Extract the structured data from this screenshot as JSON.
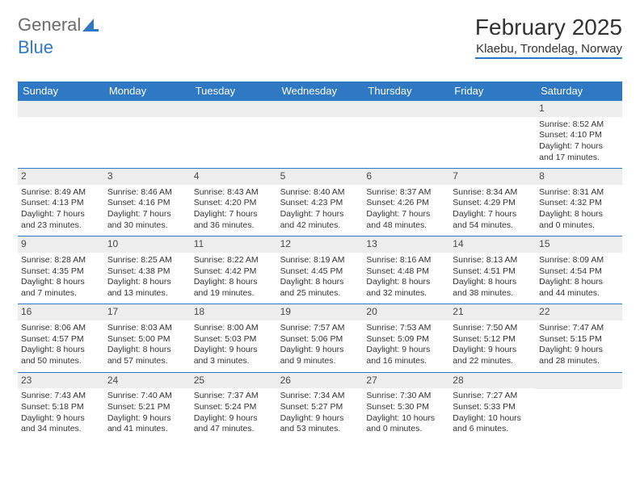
{
  "logo": {
    "text1": "General",
    "text2": "Blue"
  },
  "title": "February 2025",
  "subtitle": "Klaebu, Trondelag, Norway",
  "colors": {
    "brand": "#2f78c4",
    "daynum_bg": "#ededed",
    "text": "#333333",
    "logo_gray": "#6b6b6b"
  },
  "weekdays": [
    "Sunday",
    "Monday",
    "Tuesday",
    "Wednesday",
    "Thursday",
    "Friday",
    "Saturday"
  ],
  "weeks": [
    [
      null,
      null,
      null,
      null,
      null,
      null,
      {
        "n": "1",
        "sr": "Sunrise: 8:52 AM",
        "ss": "Sunset: 4:10 PM",
        "dl1": "Daylight: 7 hours",
        "dl2": "and 17 minutes."
      }
    ],
    [
      {
        "n": "2",
        "sr": "Sunrise: 8:49 AM",
        "ss": "Sunset: 4:13 PM",
        "dl1": "Daylight: 7 hours",
        "dl2": "and 23 minutes."
      },
      {
        "n": "3",
        "sr": "Sunrise: 8:46 AM",
        "ss": "Sunset: 4:16 PM",
        "dl1": "Daylight: 7 hours",
        "dl2": "and 30 minutes."
      },
      {
        "n": "4",
        "sr": "Sunrise: 8:43 AM",
        "ss": "Sunset: 4:20 PM",
        "dl1": "Daylight: 7 hours",
        "dl2": "and 36 minutes."
      },
      {
        "n": "5",
        "sr": "Sunrise: 8:40 AM",
        "ss": "Sunset: 4:23 PM",
        "dl1": "Daylight: 7 hours",
        "dl2": "and 42 minutes."
      },
      {
        "n": "6",
        "sr": "Sunrise: 8:37 AM",
        "ss": "Sunset: 4:26 PM",
        "dl1": "Daylight: 7 hours",
        "dl2": "and 48 minutes."
      },
      {
        "n": "7",
        "sr": "Sunrise: 8:34 AM",
        "ss": "Sunset: 4:29 PM",
        "dl1": "Daylight: 7 hours",
        "dl2": "and 54 minutes."
      },
      {
        "n": "8",
        "sr": "Sunrise: 8:31 AM",
        "ss": "Sunset: 4:32 PM",
        "dl1": "Daylight: 8 hours",
        "dl2": "and 0 minutes."
      }
    ],
    [
      {
        "n": "9",
        "sr": "Sunrise: 8:28 AM",
        "ss": "Sunset: 4:35 PM",
        "dl1": "Daylight: 8 hours",
        "dl2": "and 7 minutes."
      },
      {
        "n": "10",
        "sr": "Sunrise: 8:25 AM",
        "ss": "Sunset: 4:38 PM",
        "dl1": "Daylight: 8 hours",
        "dl2": "and 13 minutes."
      },
      {
        "n": "11",
        "sr": "Sunrise: 8:22 AM",
        "ss": "Sunset: 4:42 PM",
        "dl1": "Daylight: 8 hours",
        "dl2": "and 19 minutes."
      },
      {
        "n": "12",
        "sr": "Sunrise: 8:19 AM",
        "ss": "Sunset: 4:45 PM",
        "dl1": "Daylight: 8 hours",
        "dl2": "and 25 minutes."
      },
      {
        "n": "13",
        "sr": "Sunrise: 8:16 AM",
        "ss": "Sunset: 4:48 PM",
        "dl1": "Daylight: 8 hours",
        "dl2": "and 32 minutes."
      },
      {
        "n": "14",
        "sr": "Sunrise: 8:13 AM",
        "ss": "Sunset: 4:51 PM",
        "dl1": "Daylight: 8 hours",
        "dl2": "and 38 minutes."
      },
      {
        "n": "15",
        "sr": "Sunrise: 8:09 AM",
        "ss": "Sunset: 4:54 PM",
        "dl1": "Daylight: 8 hours",
        "dl2": "and 44 minutes."
      }
    ],
    [
      {
        "n": "16",
        "sr": "Sunrise: 8:06 AM",
        "ss": "Sunset: 4:57 PM",
        "dl1": "Daylight: 8 hours",
        "dl2": "and 50 minutes."
      },
      {
        "n": "17",
        "sr": "Sunrise: 8:03 AM",
        "ss": "Sunset: 5:00 PM",
        "dl1": "Daylight: 8 hours",
        "dl2": "and 57 minutes."
      },
      {
        "n": "18",
        "sr": "Sunrise: 8:00 AM",
        "ss": "Sunset: 5:03 PM",
        "dl1": "Daylight: 9 hours",
        "dl2": "and 3 minutes."
      },
      {
        "n": "19",
        "sr": "Sunrise: 7:57 AM",
        "ss": "Sunset: 5:06 PM",
        "dl1": "Daylight: 9 hours",
        "dl2": "and 9 minutes."
      },
      {
        "n": "20",
        "sr": "Sunrise: 7:53 AM",
        "ss": "Sunset: 5:09 PM",
        "dl1": "Daylight: 9 hours",
        "dl2": "and 16 minutes."
      },
      {
        "n": "21",
        "sr": "Sunrise: 7:50 AM",
        "ss": "Sunset: 5:12 PM",
        "dl1": "Daylight: 9 hours",
        "dl2": "and 22 minutes."
      },
      {
        "n": "22",
        "sr": "Sunrise: 7:47 AM",
        "ss": "Sunset: 5:15 PM",
        "dl1": "Daylight: 9 hours",
        "dl2": "and 28 minutes."
      }
    ],
    [
      {
        "n": "23",
        "sr": "Sunrise: 7:43 AM",
        "ss": "Sunset: 5:18 PM",
        "dl1": "Daylight: 9 hours",
        "dl2": "and 34 minutes."
      },
      {
        "n": "24",
        "sr": "Sunrise: 7:40 AM",
        "ss": "Sunset: 5:21 PM",
        "dl1": "Daylight: 9 hours",
        "dl2": "and 41 minutes."
      },
      {
        "n": "25",
        "sr": "Sunrise: 7:37 AM",
        "ss": "Sunset: 5:24 PM",
        "dl1": "Daylight: 9 hours",
        "dl2": "and 47 minutes."
      },
      {
        "n": "26",
        "sr": "Sunrise: 7:34 AM",
        "ss": "Sunset: 5:27 PM",
        "dl1": "Daylight: 9 hours",
        "dl2": "and 53 minutes."
      },
      {
        "n": "27",
        "sr": "Sunrise: 7:30 AM",
        "ss": "Sunset: 5:30 PM",
        "dl1": "Daylight: 10 hours",
        "dl2": "and 0 minutes."
      },
      {
        "n": "28",
        "sr": "Sunrise: 7:27 AM",
        "ss": "Sunset: 5:33 PM",
        "dl1": "Daylight: 10 hours",
        "dl2": "and 6 minutes."
      },
      null
    ]
  ]
}
